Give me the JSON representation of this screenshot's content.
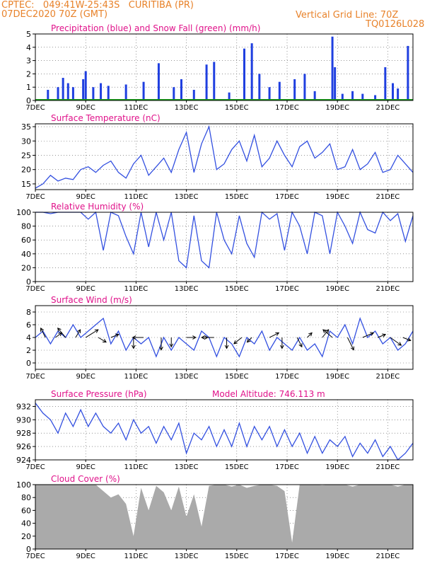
{
  "header": {
    "station": "CPTEC:   049:41W-25:43S   CURITIBA (PR)",
    "run": "07DEC2020 70Z (GMT)",
    "grid_line": "Vertical Grid Line: 70Z",
    "code": "TQ0126L028"
  },
  "colors": {
    "header": "#e8822a",
    "title": "#e0128a",
    "precip": "#1f3fe0",
    "snow": "#1aa01a",
    "line": "#3350e0",
    "cloud": "#aaaaaa",
    "arrow": "#000000"
  },
  "x_ticks": [
    "7DEC",
    "9DEC",
    "11DEC",
    "13DEC",
    "15DEC",
    "17DEC",
    "19DEC",
    "21DEC"
  ],
  "chart_data": [
    {
      "type": "bar",
      "title": "Precipitation (blue) and Snow Fall (green) (mm/h)",
      "ylim": [
        0,
        5
      ],
      "yticks": [
        "0",
        "1",
        "2",
        "3",
        "4",
        "5"
      ],
      "series": [
        {
          "name": "Precipitation",
          "values": [
            {
              "x": 7.5,
              "y": 0.8
            },
            {
              "x": 7.9,
              "y": 1.0
            },
            {
              "x": 8.1,
              "y": 1.7
            },
            {
              "x": 8.3,
              "y": 1.3
            },
            {
              "x": 8.5,
              "y": 1.0
            },
            {
              "x": 8.9,
              "y": 1.6
            },
            {
              "x": 9.0,
              "y": 2.2
            },
            {
              "x": 9.3,
              "y": 1.0
            },
            {
              "x": 9.6,
              "y": 1.3
            },
            {
              "x": 9.9,
              "y": 1.1
            },
            {
              "x": 10.6,
              "y": 1.2
            },
            {
              "x": 11.3,
              "y": 1.4
            },
            {
              "x": 11.9,
              "y": 2.8
            },
            {
              "x": 12.5,
              "y": 1.0
            },
            {
              "x": 12.8,
              "y": 1.6
            },
            {
              "x": 13.3,
              "y": 0.8
            },
            {
              "x": 13.8,
              "y": 2.7
            },
            {
              "x": 14.1,
              "y": 2.9
            },
            {
              "x": 14.7,
              "y": 0.6
            },
            {
              "x": 15.3,
              "y": 3.9
            },
            {
              "x": 15.6,
              "y": 4.3
            },
            {
              "x": 15.9,
              "y": 2.0
            },
            {
              "x": 16.3,
              "y": 1.0
            },
            {
              "x": 16.7,
              "y": 1.4
            },
            {
              "x": 17.3,
              "y": 1.6
            },
            {
              "x": 17.7,
              "y": 2.0
            },
            {
              "x": 18.1,
              "y": 0.7
            },
            {
              "x": 18.8,
              "y": 4.8
            },
            {
              "x": 18.9,
              "y": 2.5
            },
            {
              "x": 19.2,
              "y": 0.5
            },
            {
              "x": 19.6,
              "y": 0.7
            },
            {
              "x": 20.0,
              "y": 0.5
            },
            {
              "x": 20.5,
              "y": 0.4
            },
            {
              "x": 20.9,
              "y": 2.5
            },
            {
              "x": 21.2,
              "y": 1.3
            },
            {
              "x": 21.4,
              "y": 0.9
            },
            {
              "x": 21.8,
              "y": 4.1
            }
          ]
        },
        {
          "name": "Snow Fall",
          "values": [
            {
              "x": 7.0,
              "y": 0.0
            },
            {
              "x": 22.0,
              "y": 0.0
            }
          ]
        }
      ]
    },
    {
      "type": "line",
      "title": "Surface Temperature (nC)",
      "ylim": [
        13,
        36
      ],
      "yticks": [
        "15",
        "20",
        "25",
        "30",
        "35"
      ],
      "x": [
        7.0,
        7.3,
        7.6,
        7.9,
        8.2,
        8.5,
        8.8,
        9.1,
        9.4,
        9.7,
        10.0,
        10.3,
        10.6,
        10.9,
        11.2,
        11.5,
        11.8,
        12.1,
        12.4,
        12.7,
        13.0,
        13.3,
        13.6,
        13.9,
        14.2,
        14.5,
        14.8,
        15.1,
        15.4,
        15.7,
        16.0,
        16.3,
        16.6,
        16.9,
        17.2,
        17.5,
        17.8,
        18.1,
        18.4,
        18.7,
        19.0,
        19.3,
        19.6,
        19.9,
        20.2,
        20.5,
        20.8,
        21.1,
        21.4,
        21.7,
        22.0
      ],
      "series": [
        {
          "values": [
            13.5,
            15,
            18,
            16,
            17,
            16.5,
            20,
            21,
            19,
            21.5,
            23,
            19,
            17,
            22,
            25,
            18,
            21,
            24,
            19,
            27,
            33,
            19,
            29,
            35,
            20,
            22,
            27,
            30,
            23,
            32,
            21,
            24,
            30,
            25,
            21,
            28,
            30,
            24,
            26,
            29,
            20,
            21,
            27,
            20,
            22,
            26,
            19,
            20,
            25,
            22,
            19
          ]
        }
      ]
    },
    {
      "type": "line",
      "title": "Relative Humidity (%)",
      "ylim": [
        0,
        100
      ],
      "yticks": [
        "0",
        "20",
        "40",
        "60",
        "80",
        "100"
      ],
      "x": [
        7.0,
        7.3,
        7.6,
        7.9,
        8.2,
        8.5,
        8.8,
        9.1,
        9.4,
        9.7,
        10.0,
        10.3,
        10.6,
        10.9,
        11.2,
        11.5,
        11.8,
        12.1,
        12.4,
        12.7,
        13.0,
        13.3,
        13.6,
        13.9,
        14.2,
        14.5,
        14.8,
        15.1,
        15.4,
        15.7,
        16.0,
        16.3,
        16.6,
        16.9,
        17.2,
        17.5,
        17.8,
        18.1,
        18.4,
        18.7,
        19.0,
        19.3,
        19.6,
        19.9,
        20.2,
        20.5,
        20.8,
        21.1,
        21.4,
        21.7,
        22.0
      ],
      "series": [
        {
          "values": [
            100,
            100,
            98,
            100,
            100,
            100,
            100,
            90,
            100,
            45,
            100,
            95,
            65,
            40,
            100,
            50,
            100,
            60,
            100,
            30,
            20,
            95,
            30,
            20,
            100,
            60,
            40,
            95,
            55,
            35,
            100,
            90,
            98,
            45,
            100,
            80,
            40,
            100,
            95,
            40,
            100,
            80,
            55,
            100,
            75,
            70,
            100,
            88,
            98,
            58,
            95
          ]
        }
      ]
    },
    {
      "type": "line",
      "title": "Surface Wind (m/s)",
      "ylim": [
        -1,
        9
      ],
      "yticks": [
        "0",
        "2",
        "4",
        "6",
        "8"
      ],
      "x": [
        7.0,
        7.3,
        7.6,
        7.9,
        8.2,
        8.5,
        8.8,
        9.1,
        9.4,
        9.7,
        10.0,
        10.3,
        10.6,
        10.9,
        11.2,
        11.5,
        11.8,
        12.1,
        12.4,
        12.7,
        13.0,
        13.3,
        13.6,
        13.9,
        14.2,
        14.5,
        14.8,
        15.1,
        15.4,
        15.7,
        16.0,
        16.3,
        16.6,
        16.9,
        17.2,
        17.5,
        17.8,
        18.1,
        18.4,
        18.7,
        19.0,
        19.3,
        19.6,
        19.9,
        20.2,
        20.5,
        20.8,
        21.1,
        21.4,
        21.7,
        22.0
      ],
      "series": [
        {
          "values": [
            4,
            5,
            3,
            5,
            4,
            6,
            4,
            5,
            6,
            7,
            3,
            5,
            2,
            4,
            3,
            4,
            1,
            4,
            2,
            4,
            3,
            2,
            5,
            4,
            1,
            4,
            3,
            1,
            4,
            3,
            5,
            2,
            4,
            3,
            2,
            4,
            2,
            3,
            1,
            5,
            4,
            6,
            3,
            7,
            4,
            5,
            3,
            4,
            2,
            3,
            5
          ]
        }
      ],
      "arrows": [
        {
          "x": 7.4,
          "u": -0.3,
          "v": 0.6
        },
        {
          "x": 7.8,
          "u": 0.4,
          "v": 0.3
        },
        {
          "x": 8.2,
          "u": -0.5,
          "v": 0.6
        },
        {
          "x": 8.6,
          "u": 0.3,
          "v": 0.5
        },
        {
          "x": 9.0,
          "u": 0.8,
          "v": 0.5
        },
        {
          "x": 9.5,
          "u": 0.5,
          "v": -0.3
        },
        {
          "x": 10.0,
          "u": 0.5,
          "v": 0.2
        },
        {
          "x": 10.9,
          "u": 0.0,
          "v": -0.7
        },
        {
          "x": 11.3,
          "u": -0.7,
          "v": 0.0
        },
        {
          "x": 12.0,
          "u": 0.0,
          "v": -0.8
        },
        {
          "x": 12.4,
          "u": 0.0,
          "v": -0.6
        },
        {
          "x": 13.0,
          "u": 0.6,
          "v": 0.0
        },
        {
          "x": 13.6,
          "u": 0.4,
          "v": 0.0
        },
        {
          "x": 14.1,
          "u": -0.8,
          "v": 0.0
        },
        {
          "x": 14.6,
          "u": 0.0,
          "v": -0.7
        },
        {
          "x": 15.2,
          "u": -0.5,
          "v": -0.4
        },
        {
          "x": 15.6,
          "u": -0.3,
          "v": -0.3
        },
        {
          "x": 16.3,
          "u": 0.6,
          "v": 0.3
        },
        {
          "x": 16.8,
          "u": 0.0,
          "v": -0.7
        },
        {
          "x": 17.4,
          "u": 0.3,
          "v": -0.6
        },
        {
          "x": 17.8,
          "u": 0.3,
          "v": 0.3
        },
        {
          "x": 18.4,
          "u": 0.4,
          "v": 0.5
        },
        {
          "x": 18.8,
          "u": -0.6,
          "v": 0.5
        },
        {
          "x": 19.4,
          "u": 0.4,
          "v": -0.8
        },
        {
          "x": 20.0,
          "u": 0.7,
          "v": 0.3
        },
        {
          "x": 20.6,
          "u": 0.5,
          "v": 0.2
        },
        {
          "x": 21.1,
          "u": 0.7,
          "v": -0.5
        },
        {
          "x": 21.6,
          "u": 0.5,
          "v": -0.2
        }
      ]
    },
    {
      "type": "line",
      "title": "Surface Pressure (hPa)",
      "annotation": "Model Altitude: 746.113 m",
      "ylim": [
        924,
        933
      ],
      "yticks": [
        "924",
        "926",
        "928",
        "930",
        "932"
      ],
      "x": [
        7.0,
        7.3,
        7.6,
        7.9,
        8.2,
        8.5,
        8.8,
        9.1,
        9.4,
        9.7,
        10.0,
        10.3,
        10.6,
        10.9,
        11.2,
        11.5,
        11.8,
        12.1,
        12.4,
        12.7,
        13.0,
        13.3,
        13.6,
        13.9,
        14.2,
        14.5,
        14.8,
        15.1,
        15.4,
        15.7,
        16.0,
        16.3,
        16.6,
        16.9,
        17.2,
        17.5,
        17.8,
        18.1,
        18.4,
        18.7,
        19.0,
        19.3,
        19.6,
        19.9,
        20.2,
        20.5,
        20.8,
        21.1,
        21.4,
        21.7,
        22.0
      ],
      "series": [
        {
          "values": [
            932.5,
            931,
            930,
            928,
            931,
            929,
            931.5,
            929,
            931,
            929,
            928,
            929.5,
            927,
            930,
            928,
            929,
            926.5,
            929,
            927,
            929.5,
            925,
            928,
            927,
            929,
            926,
            928.5,
            926,
            929.5,
            926,
            929,
            927,
            929,
            926,
            928.5,
            926,
            928,
            925,
            927.5,
            925,
            927,
            926,
            927.5,
            924.5,
            926.5,
            925,
            927,
            924.5,
            926,
            924,
            925,
            926.5
          ]
        }
      ]
    },
    {
      "type": "area",
      "title": "Cloud Cover (%)",
      "ylim": [
        0,
        100
      ],
      "yticks": [
        "0",
        "20",
        "40",
        "60",
        "80",
        "100"
      ],
      "x": [
        7.0,
        7.3,
        7.6,
        7.9,
        8.2,
        8.5,
        8.8,
        9.1,
        9.4,
        9.7,
        10.0,
        10.3,
        10.6,
        10.9,
        11.2,
        11.5,
        11.8,
        12.1,
        12.4,
        12.7,
        13.0,
        13.3,
        13.6,
        13.9,
        14.2,
        14.5,
        14.8,
        15.1,
        15.4,
        15.7,
        16.0,
        16.3,
        16.6,
        16.9,
        17.2,
        17.5,
        17.8,
        18.1,
        18.4,
        18.7,
        19.0,
        19.3,
        19.6,
        19.9,
        20.2,
        20.5,
        20.8,
        21.1,
        21.4,
        21.7,
        22.0
      ],
      "series": [
        {
          "values": [
            100,
            100,
            100,
            100,
            100,
            100,
            100,
            100,
            100,
            90,
            80,
            85,
            70,
            20,
            95,
            60,
            98,
            88,
            60,
            97,
            50,
            85,
            35,
            98,
            100,
            100,
            97,
            100,
            95,
            98,
            100,
            100,
            98,
            90,
            10,
            100,
            100,
            100,
            99,
            100,
            100,
            100,
            97,
            100,
            100,
            100,
            100,
            100,
            97,
            100,
            100
          ]
        }
      ]
    }
  ]
}
